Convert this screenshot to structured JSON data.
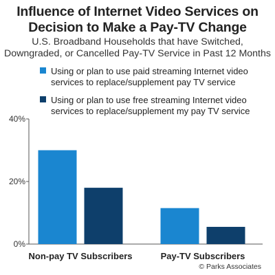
{
  "header": {
    "title_line1": "Influence of Internet Video Services on",
    "title_line2": "Decision to Make a Pay-TV Change",
    "subtitle_line1": "U.S. Broadband Households that have Switched,",
    "subtitle_line2": "Downgraded, or Cancelled Pay-TV Service in Past 12 Months"
  },
  "footer": {
    "credit": "© Parks Associates"
  },
  "colors": {
    "paid": "#1a86d0",
    "free": "#0e3f6b",
    "axis": "#555555"
  },
  "chart_data": {
    "type": "bar",
    "categories": [
      "Non-pay TV Subscribers",
      "Pay-TV Subscribers"
    ],
    "series": [
      {
        "name": "Using or plan to use paid streaming Internet video services to replace/supplement pay TV service",
        "values": [
          30,
          11.5
        ]
      },
      {
        "name": "Using or plan to use free streaming Internet video services to replace/supplement my pay TV service",
        "values": [
          18,
          5.5
        ]
      }
    ],
    "legend_lines": [
      [
        "Using or plan to use paid streaming Internet video",
        "services to replace/supplement pay TV service"
      ],
      [
        "Using or plan to use free streaming Internet video",
        "services to replace/supplement my pay TV service"
      ]
    ],
    "ylim": [
      0,
      40
    ],
    "yticks": [
      {
        "value": 0,
        "label": "0%"
      },
      {
        "value": 20,
        "label": "20%"
      },
      {
        "value": 40,
        "label": "40%"
      }
    ],
    "legend_position": "top",
    "grid": false
  }
}
